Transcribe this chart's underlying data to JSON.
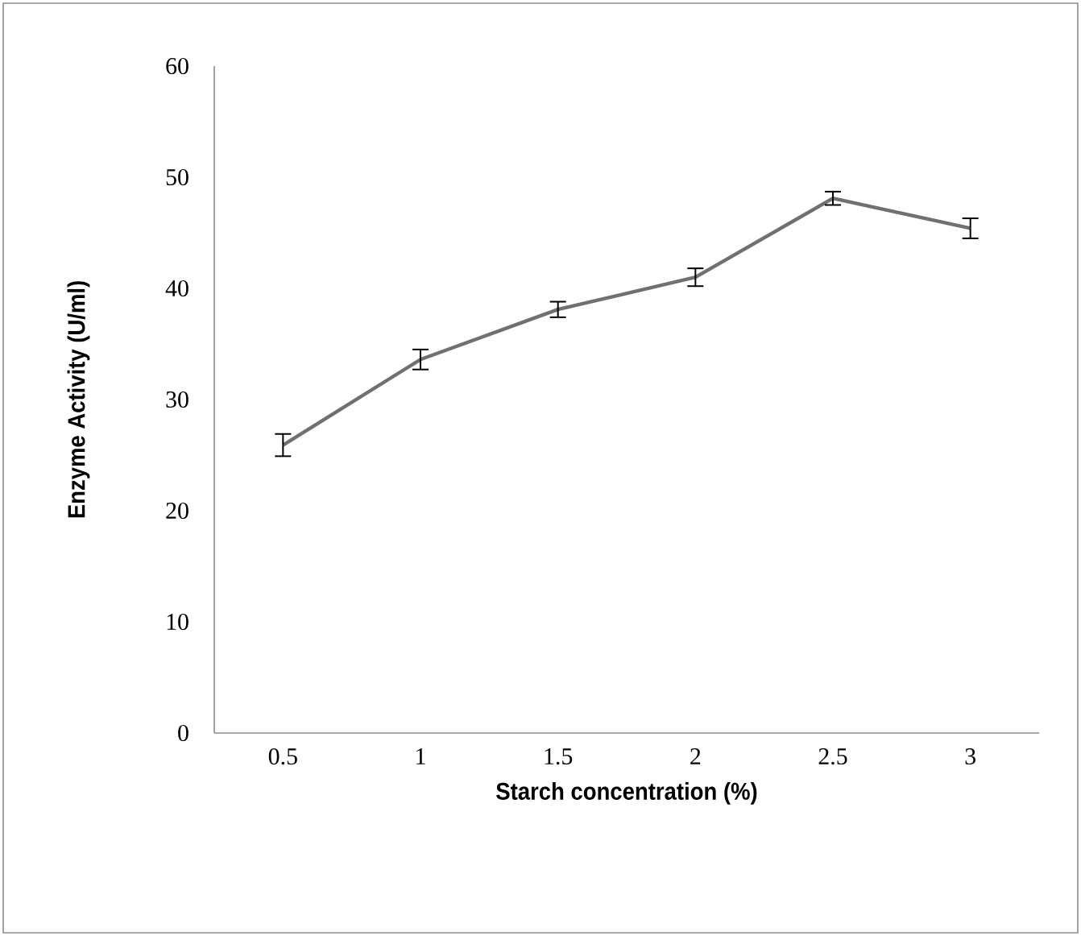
{
  "chart_data": {
    "type": "line",
    "xlabel": "Starch concentration (%)",
    "ylabel": "Enzyme Activity (U/ml)",
    "categories": [
      "0.5",
      "1",
      "1.5",
      "2",
      "2.5",
      "3"
    ],
    "series": [
      {
        "color": "#707070",
        "values": [
          25.9,
          33.6,
          38.1,
          41.0,
          48.1,
          45.4
        ],
        "errors": [
          1.0,
          0.9,
          0.7,
          0.8,
          0.6,
          0.9
        ]
      }
    ],
    "ylim": [
      0,
      60
    ],
    "yticks": [
      0,
      10,
      20,
      30,
      40,
      50,
      60
    ],
    "marker": "none",
    "line_style": "solid"
  }
}
